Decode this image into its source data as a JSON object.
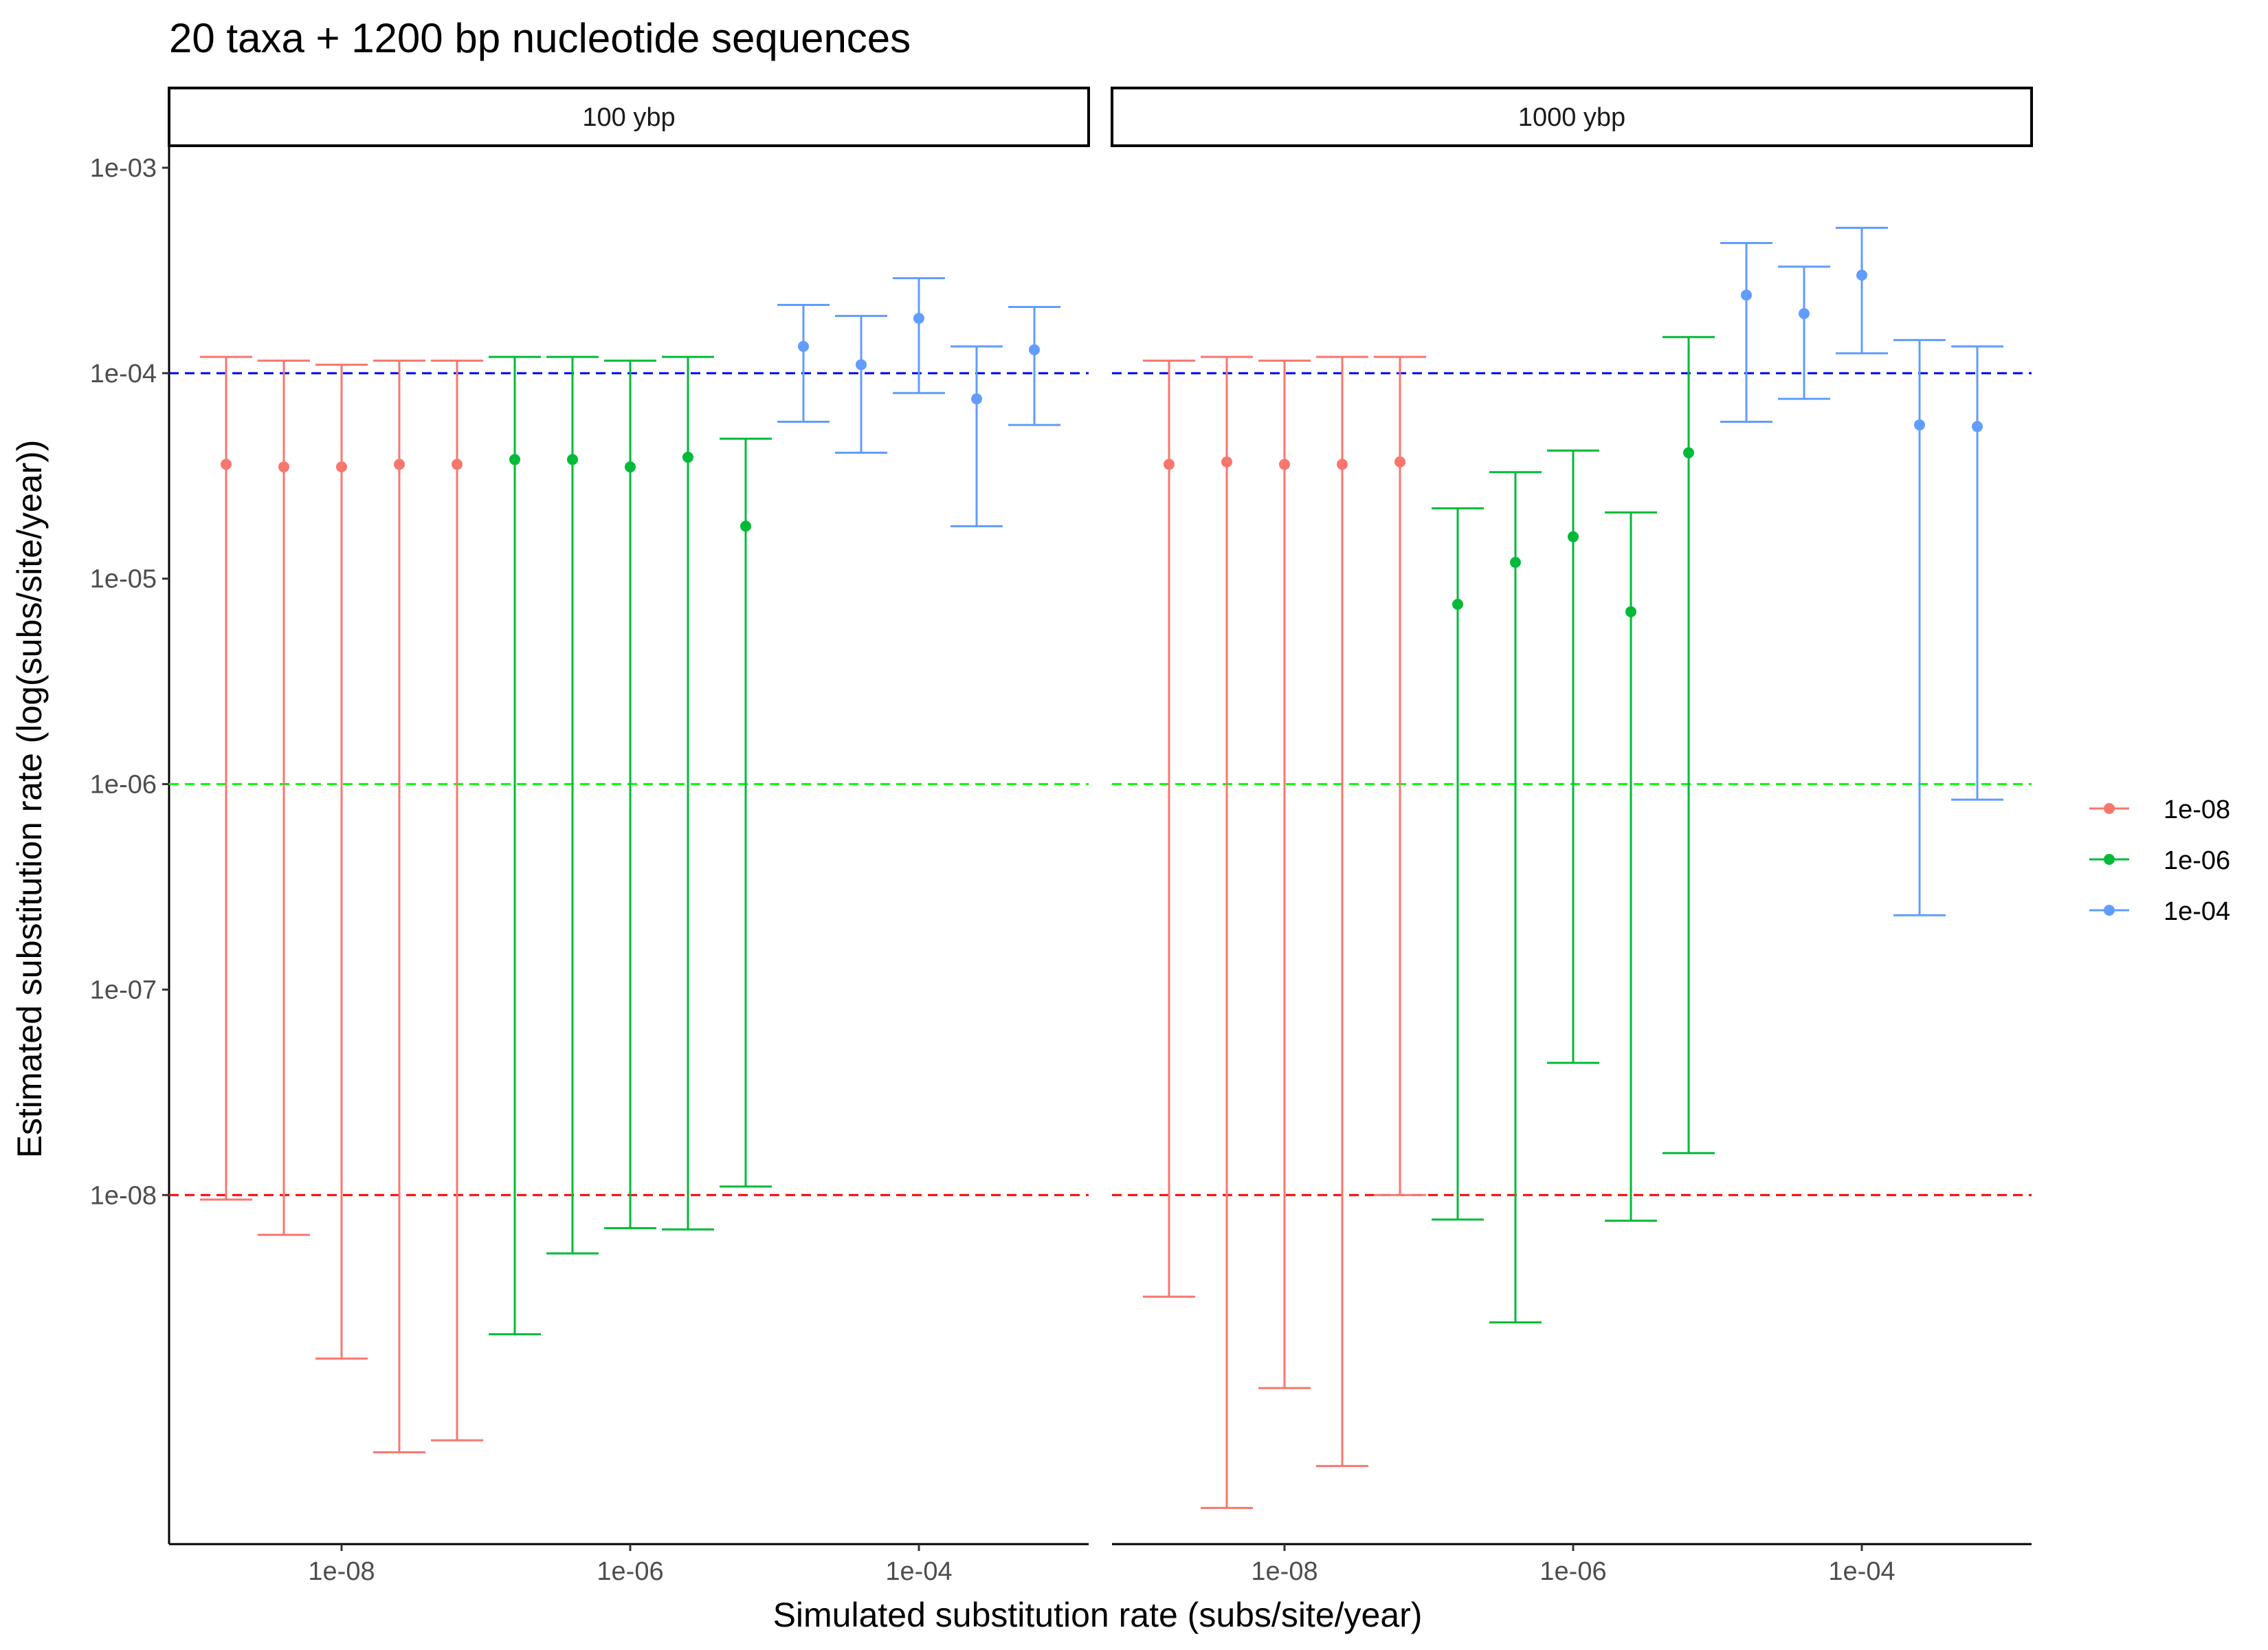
{
  "chart_data": {
    "type": "errorbar",
    "title": "20 taxa + 1200 bp nucleotide sequences",
    "xlabel": "Simulated substitution rate (subs/site/year)",
    "ylabel": "Estimated substitution rate (log(subs/site/year))",
    "y_scale": "log10",
    "ylim": [
      "2e-10",
      "2e-03"
    ],
    "y_ticks": [
      "1e-08",
      "1e-07",
      "1e-06",
      "1e-05",
      "1e-04",
      "1e-03"
    ],
    "x_ticks": [
      "1e-08",
      "1e-06",
      "1e-04"
    ],
    "legend": {
      "placement": "right",
      "entries": [
        {
          "label": "1e-08",
          "color": "#F8766D"
        },
        {
          "label": "1e-06",
          "color": "#00BA38"
        },
        {
          "label": "1e-04",
          "color": "#619CFF"
        }
      ]
    },
    "reference_lines": [
      {
        "y": "1e-04",
        "color": "#0000FF",
        "style": "dashed"
      },
      {
        "y": "1e-06",
        "color": "#00FF00",
        "style": "dashed"
      },
      {
        "y": "1e-08",
        "color": "#FF0000",
        "style": "dashed"
      }
    ],
    "panels": [
      {
        "label": "100 ybp",
        "points": [
          {
            "group": "1e-08",
            "est": "3.6e-05",
            "lower": "9.5e-09",
            "upper": "1.2e-04"
          },
          {
            "group": "1e-08",
            "est": "3.5e-05",
            "lower": "6.4e-09",
            "upper": "1.15e-04"
          },
          {
            "group": "1e-08",
            "est": "3.5e-05",
            "lower": "1.6e-09",
            "upper": "1.1e-04"
          },
          {
            "group": "1e-08",
            "est": "3.6e-05",
            "lower": "5.6e-10",
            "upper": "1.15e-04"
          },
          {
            "group": "1e-08",
            "est": "3.6e-05",
            "lower": "6.4e-10",
            "upper": "1.15e-04"
          },
          {
            "group": "1e-06",
            "est": "3.8e-05",
            "lower": "2.1e-09",
            "upper": "1.2e-04"
          },
          {
            "group": "1e-06",
            "est": "3.8e-05",
            "lower": "5.2e-09",
            "upper": "1.2e-04"
          },
          {
            "group": "1e-06",
            "est": "3.5e-05",
            "lower": "6.9e-09",
            "upper": "1.15e-04"
          },
          {
            "group": "1e-06",
            "est": "3.9e-05",
            "lower": "6.8e-09",
            "upper": "1.2e-04"
          },
          {
            "group": "1e-06",
            "est": "1.8e-05",
            "lower": "1.1e-08",
            "upper": "4.8e-05"
          },
          {
            "group": "1e-04",
            "est": "1.35e-04",
            "lower": "5.8e-05",
            "upper": "2.15e-04"
          },
          {
            "group": "1e-04",
            "est": "1.1e-04",
            "lower": "4.1e-05",
            "upper": "1.9e-04"
          },
          {
            "group": "1e-04",
            "est": "1.85e-04",
            "lower": "8.0e-05",
            "upper": "2.9e-04"
          },
          {
            "group": "1e-04",
            "est": "7.5e-05",
            "lower": "1.8e-05",
            "upper": "1.35e-04"
          },
          {
            "group": "1e-04",
            "est": "1.3e-04",
            "lower": "5.6e-05",
            "upper": "2.1e-04"
          }
        ]
      },
      {
        "label": "1000 ybp",
        "points": [
          {
            "group": "1e-08",
            "est": "3.6e-05",
            "lower": "3.2e-09",
            "upper": "1.15e-04"
          },
          {
            "group": "1e-08",
            "est": "3.7e-05",
            "lower": "3.0e-10",
            "upper": "1.2e-04"
          },
          {
            "group": "1e-08",
            "est": "3.6e-05",
            "lower": "1.15e-09",
            "upper": "1.15e-04"
          },
          {
            "group": "1e-08",
            "est": "3.6e-05",
            "lower": "4.8e-10",
            "upper": "1.2e-04"
          },
          {
            "group": "1e-08",
            "est": "3.7e-05",
            "lower": "1.0e-08",
            "upper": "1.2e-04"
          },
          {
            "group": "1e-06",
            "est": "7.5e-06",
            "lower": "7.6e-09",
            "upper": "2.2e-05"
          },
          {
            "group": "1e-06",
            "est": "1.2e-05",
            "lower": "2.4e-09",
            "upper": "3.3e-05"
          },
          {
            "group": "1e-06",
            "est": "1.6e-05",
            "lower": "4.4e-08",
            "upper": "4.2e-05"
          },
          {
            "group": "1e-06",
            "est": "6.9e-06",
            "lower": "7.5e-09",
            "upper": "2.1e-05"
          },
          {
            "group": "1e-06",
            "est": "4.1e-05",
            "lower": "1.6e-08",
            "upper": "1.5e-04"
          },
          {
            "group": "1e-04",
            "est": "2.4e-04",
            "lower": "5.8e-05",
            "upper": "4.3e-04"
          },
          {
            "group": "1e-04",
            "est": "1.95e-04",
            "lower": "7.5e-05",
            "upper": "3.3e-04"
          },
          {
            "group": "1e-04",
            "est": "3.0e-04",
            "lower": "1.25e-04",
            "upper": "5.1e-04"
          },
          {
            "group": "1e-04",
            "est": "5.6e-05",
            "lower": "2.3e-07",
            "upper": "1.45e-04"
          },
          {
            "group": "1e-04",
            "est": "5.5e-05",
            "lower": "8.4e-07",
            "upper": "1.35e-04"
          }
        ]
      }
    ]
  }
}
